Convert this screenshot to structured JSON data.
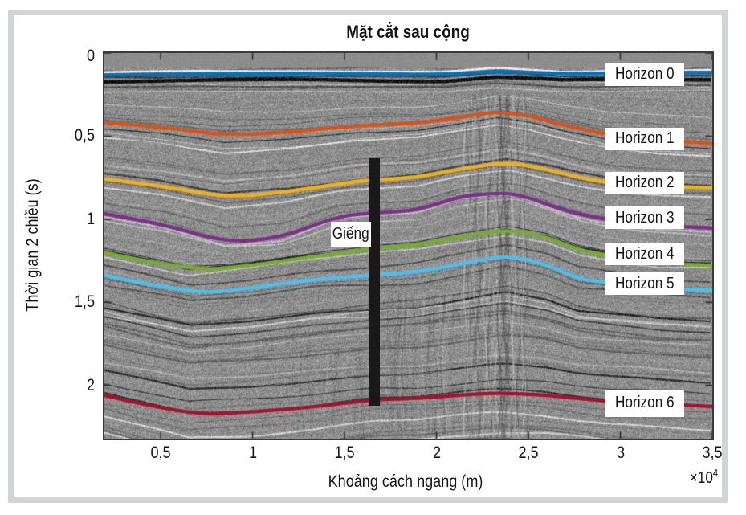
{
  "figure": {
    "background": "#ffffff",
    "frame_color": "#d3d4d6",
    "plot_border_color": "#3a3a3a"
  },
  "chart_data": {
    "type": "line",
    "title": "Mặt cắt sau cộng",
    "xlabel": "Khoảng cách ngang (m)",
    "x_multiplier_base": "×10",
    "x_multiplier_exp": "4",
    "ylabel": "Thời gian 2 chiều (s)",
    "xlim": [
      0.194,
      3.5
    ],
    "ylim": [
      0,
      2.32
    ],
    "y_inverted": true,
    "grid": false,
    "background": {
      "style": "seismic-grayscale",
      "base": "#8e8e8e"
    },
    "x_ticks": [
      {
        "v": 0.5,
        "label": "0,5"
      },
      {
        "v": 1,
        "label": "1"
      },
      {
        "v": 1.5,
        "label": "1,5"
      },
      {
        "v": 2,
        "label": "2"
      },
      {
        "v": 2.5,
        "label": "2,5"
      },
      {
        "v": 3,
        "label": "3"
      },
      {
        "v": 3.5,
        "label": "3,5"
      }
    ],
    "y_ticks": [
      {
        "v": 0,
        "label": "0"
      },
      {
        "v": 0.5,
        "label": "0,5"
      },
      {
        "v": 1,
        "label": "1"
      },
      {
        "v": 1.5,
        "label": "1,5"
      },
      {
        "v": 2,
        "label": "2"
      }
    ],
    "horizons": [
      {
        "name": "Horizon 0",
        "color": "#0072BD",
        "label_x": 2.92,
        "label_t": 0.129,
        "points": [
          [
            0.19,
            0.131
          ],
          [
            0.72,
            0.126
          ],
          [
            1.37,
            0.121
          ],
          [
            2.03,
            0.131
          ],
          [
            2.33,
            0.107
          ],
          [
            2.68,
            0.126
          ],
          [
            3.12,
            0.117
          ],
          [
            3.5,
            0.117
          ]
        ]
      },
      {
        "name": "Horizon 1",
        "color": "#D95319",
        "label_x": 2.92,
        "label_t": 0.515,
        "points": [
          [
            0.19,
            0.417
          ],
          [
            0.52,
            0.447
          ],
          [
            0.85,
            0.495
          ],
          [
            1.2,
            0.476
          ],
          [
            1.55,
            0.437
          ],
          [
            1.9,
            0.422
          ],
          [
            2.12,
            0.388
          ],
          [
            2.33,
            0.35
          ],
          [
            2.51,
            0.379
          ],
          [
            2.68,
            0.432
          ],
          [
            2.95,
            0.495
          ],
          [
            3.21,
            0.524
          ],
          [
            3.5,
            0.544
          ]
        ]
      },
      {
        "name": "Horizon 2",
        "color": "#EDB120",
        "label_x": 2.92,
        "label_t": 0.781,
        "points": [
          [
            0.19,
            0.757
          ],
          [
            0.52,
            0.801
          ],
          [
            0.85,
            0.869
          ],
          [
            1.2,
            0.835
          ],
          [
            1.55,
            0.772
          ],
          [
            1.68,
            0.762
          ],
          [
            1.9,
            0.748
          ],
          [
            2.12,
            0.699
          ],
          [
            2.38,
            0.655
          ],
          [
            2.6,
            0.699
          ],
          [
            2.77,
            0.748
          ],
          [
            2.95,
            0.782
          ],
          [
            3.21,
            0.801
          ],
          [
            3.5,
            0.811
          ]
        ]
      },
      {
        "name": "Horizon 3",
        "color": "#7E2F8E",
        "label_x": 2.92,
        "label_t": 0.993,
        "points": [
          [
            0.19,
            0.966
          ],
          [
            0.52,
            1.029
          ],
          [
            0.85,
            1.141
          ],
          [
            1.16,
            1.112
          ],
          [
            1.46,
            0.981
          ],
          [
            1.68,
            0.961
          ],
          [
            1.9,
            0.947
          ],
          [
            2.12,
            0.864
          ],
          [
            2.29,
            0.845
          ],
          [
            2.44,
            0.845
          ],
          [
            2.68,
            0.942
          ],
          [
            2.86,
            0.99
          ],
          [
            3.12,
            1.034
          ],
          [
            3.5,
            1.053
          ]
        ]
      },
      {
        "name": "Horizon 4",
        "color": "#77AC30",
        "label_x": 2.92,
        "label_t": 1.209,
        "points": [
          [
            0.19,
            1.199
          ],
          [
            0.65,
            1.311
          ],
          [
            0.98,
            1.282
          ],
          [
            1.33,
            1.223
          ],
          [
            1.68,
            1.175
          ],
          [
            1.9,
            1.155
          ],
          [
            2.12,
            1.107
          ],
          [
            2.38,
            1.058
          ],
          [
            2.6,
            1.107
          ],
          [
            2.77,
            1.184
          ],
          [
            2.95,
            1.223
          ],
          [
            3.21,
            1.267
          ],
          [
            3.5,
            1.277
          ]
        ]
      },
      {
        "name": "Horizon 5",
        "color": "#4DBEEE",
        "label_x": 2.92,
        "label_t": 1.388,
        "points": [
          [
            0.19,
            1.335
          ],
          [
            0.67,
            1.451
          ],
          [
            0.98,
            1.417
          ],
          [
            1.33,
            1.359
          ],
          [
            1.68,
            1.335
          ],
          [
            1.9,
            1.316
          ],
          [
            2.12,
            1.272
          ],
          [
            2.38,
            1.214
          ],
          [
            2.6,
            1.272
          ],
          [
            2.77,
            1.359
          ],
          [
            2.95,
            1.383
          ],
          [
            3.21,
            1.417
          ],
          [
            3.5,
            1.427
          ]
        ]
      },
      {
        "name": "Horizon 6",
        "color": "#A2142F",
        "label_x": 2.92,
        "label_t": 2.107,
        "label_h": 34,
        "points": [
          [
            0.19,
            2.058
          ],
          [
            0.65,
            2.18
          ],
          [
            0.98,
            2.16
          ],
          [
            1.33,
            2.131
          ],
          [
            1.66,
            2.083
          ],
          [
            1.9,
            2.078
          ],
          [
            2.12,
            2.058
          ],
          [
            2.33,
            2.044
          ],
          [
            2.6,
            2.058
          ],
          [
            2.77,
            2.078
          ],
          [
            2.95,
            2.097
          ],
          [
            3.21,
            2.112
          ],
          [
            3.5,
            2.126
          ]
        ]
      }
    ],
    "well": {
      "label": "Giếng",
      "x": 1.661,
      "t_top": 0.631,
      "t_bottom": 2.121,
      "label_x": 1.535,
      "label_t": 1.09,
      "color": "#191919"
    }
  }
}
